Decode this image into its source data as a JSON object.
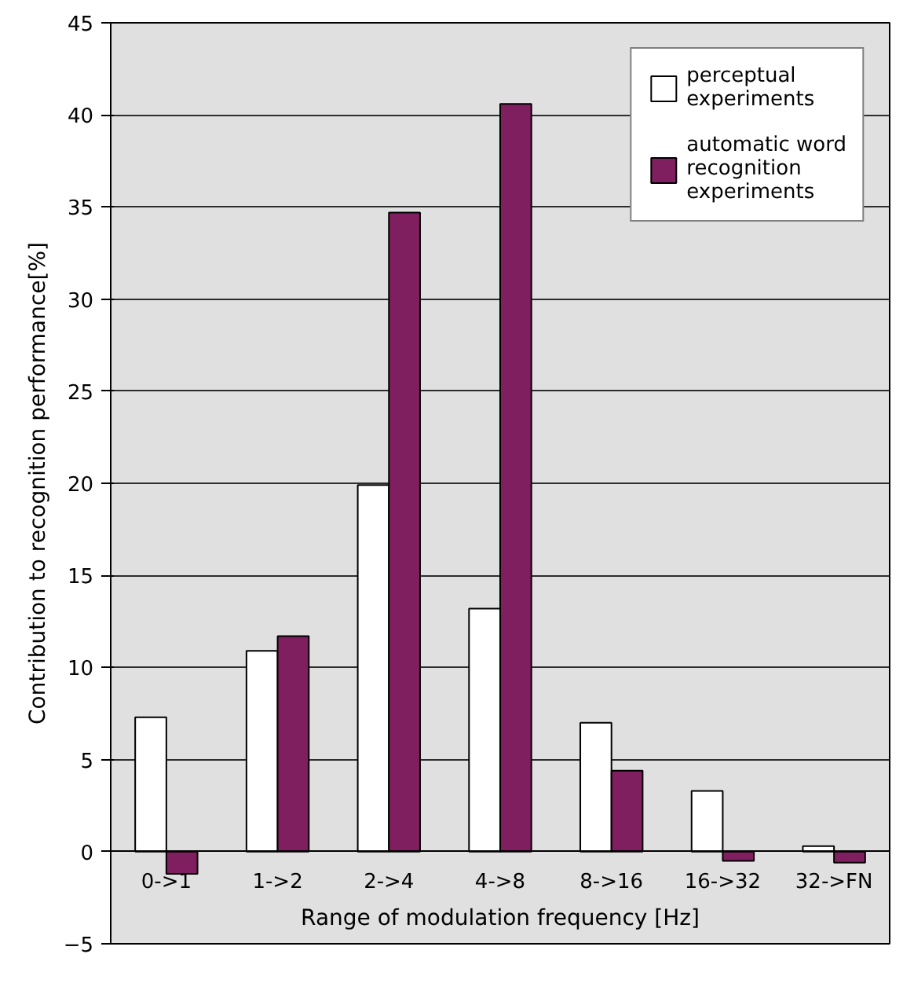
{
  "chart_data": {
    "type": "bar",
    "xlabel": "Range of modulation frequency [Hz]",
    "ylabel": "Contribution to recognition performance[%]",
    "categories": [
      "0->1",
      "1->2",
      "2->4",
      "4->8",
      "8->16",
      "16->32",
      "32->FN"
    ],
    "series": [
      {
        "name": "perceptual experiments",
        "color": "#ffffff",
        "values": [
          7.3,
          10.9,
          19.9,
          13.2,
          7.0,
          3.3,
          0.3
        ]
      },
      {
        "name": "automatic word recognition experiments",
        "color": "#7f1f5f",
        "values": [
          -1.2,
          11.7,
          34.7,
          40.6,
          4.4,
          -0.5,
          -0.6
        ]
      }
    ],
    "ylim": [
      -5,
      45
    ],
    "yticks": [
      {
        "value": -5,
        "label": "−5"
      },
      0,
      5,
      10,
      15,
      20,
      25,
      30,
      35,
      40,
      45
    ],
    "grid": "y",
    "legend": "top right"
  }
}
